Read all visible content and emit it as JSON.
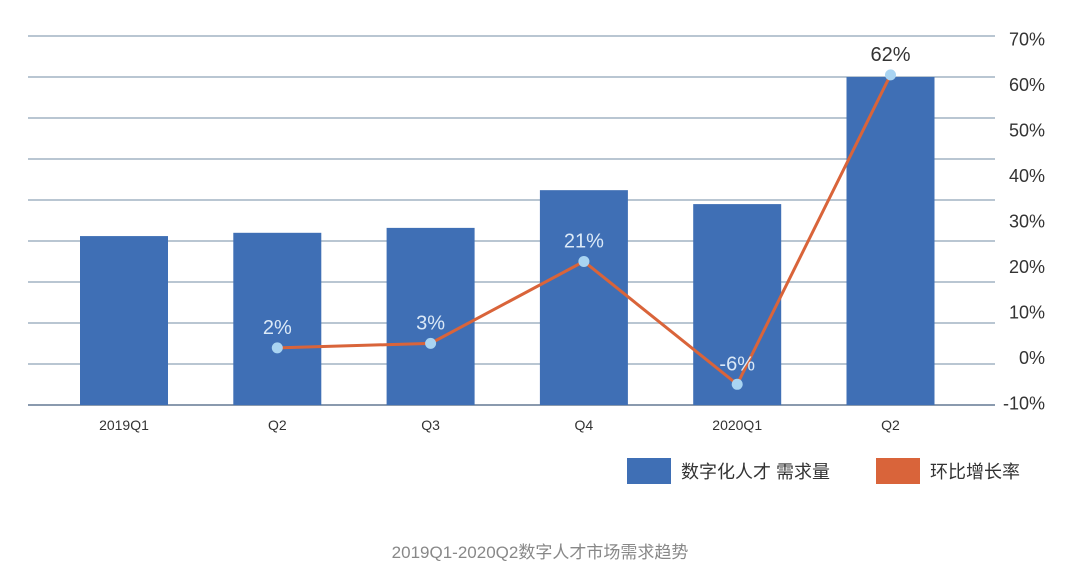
{
  "chart_data": {
    "type": "bar+line",
    "title": "",
    "caption": "2019Q1-2020Q2数字人才市场需求趋势",
    "categories": [
      "2019Q1",
      "Q2",
      "Q3",
      "Q4",
      "2020Q1",
      "Q2"
    ],
    "series": [
      {
        "name": "数字化人才 需求量",
        "type": "bar",
        "axis": "left (unlabeled)",
        "color": "#3f6fb5",
        "values": [
          4.12,
          4.2,
          4.32,
          5.24,
          4.9,
          8.0
        ]
      },
      {
        "name": "环比增长率",
        "type": "line",
        "axis": "right",
        "color": "#d9643a",
        "marker_color": "#a9d4f2",
        "values": [
          null,
          2,
          3,
          21,
          -6,
          62
        ],
        "data_labels": [
          "",
          "2%",
          "3%",
          "21%",
          "-6%",
          "62%"
        ]
      }
    ],
    "left_axis": {
      "ylim": [
        0,
        9
      ],
      "tick_labels_shown": false
    },
    "right_axis": {
      "ylim": [
        -10,
        70
      ],
      "ticks": [
        "-10%",
        "0%",
        "10%",
        "20%",
        "30%",
        "40%",
        "50%",
        "60%",
        "70%"
      ],
      "tick_values": [
        -10,
        0,
        10,
        20,
        30,
        40,
        50,
        60,
        70
      ]
    },
    "grid": true,
    "legend_position": "bottom-right"
  }
}
